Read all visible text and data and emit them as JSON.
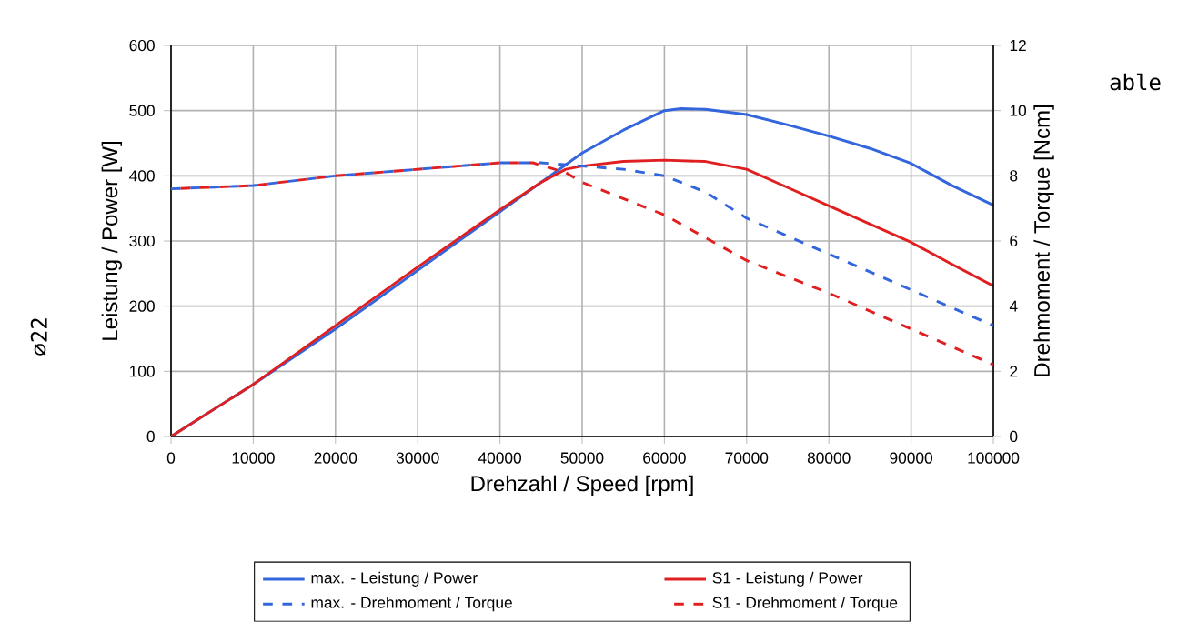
{
  "chart_data": {
    "type": "line",
    "xlabel": "Drehzahl / Speed [rpm]",
    "ylabel": "Leistung / Power [W]",
    "y2label": "Drehmoment / Torque [Ncm]",
    "xlim": [
      0,
      100000
    ],
    "xticks": [
      0,
      10000,
      20000,
      30000,
      40000,
      50000,
      60000,
      70000,
      80000,
      90000,
      100000
    ],
    "ylim": [
      0,
      600
    ],
    "yticks": [
      0,
      100,
      200,
      300,
      400,
      500,
      600
    ],
    "y2lim": [
      0,
      12
    ],
    "y2ticks": [
      0,
      2,
      4,
      6,
      8,
      10,
      12
    ],
    "grid": true,
    "legend": "bottom",
    "marker": "none",
    "annotations": [
      "able",
      "∅22"
    ],
    "series": [
      {
        "name": "max. - Leistung / Power",
        "color": "#3366dd",
        "line_style": "solid",
        "x": [
          0,
          10000,
          20000,
          30000,
          40000,
          45000,
          50000,
          55000,
          60000,
          62000,
          65000,
          70000,
          75000,
          80000,
          85000,
          90000,
          95000,
          100000
        ],
        "values": [
          0,
          80,
          165,
          255,
          345,
          390,
          435,
          470,
          500,
          503,
          502,
          494,
          478,
          461,
          442,
          419,
          385,
          355
        ]
      },
      {
        "name": "S1 - Leistung / Power",
        "color": "#e02020",
        "line_style": "solid",
        "x": [
          0,
          10000,
          20000,
          30000,
          40000,
          45000,
          48000,
          50000,
          55000,
          60000,
          65000,
          70000,
          75000,
          80000,
          85000,
          90000,
          95000,
          100000
        ],
        "values": [
          0,
          80,
          170,
          260,
          348,
          390,
          410,
          415,
          422,
          424,
          422,
          410,
          382,
          354,
          326,
          298,
          264,
          231
        ]
      },
      {
        "name": "max. - Drehmoment / Torque",
        "color": "#3366dd",
        "line_style": "dashed",
        "axis": "y2",
        "x": [
          0,
          10000,
          20000,
          30000,
          40000,
          45000,
          50000,
          55000,
          60000,
          65000,
          70000,
          80000,
          90000,
          100000
        ],
        "values": [
          7.6,
          7.7,
          8.0,
          8.2,
          8.4,
          8.4,
          8.3,
          8.2,
          8.0,
          7.5,
          6.7,
          5.6,
          4.5,
          3.4
        ]
      },
      {
        "name": "S1 - Drehmoment / Torque",
        "color": "#e02020",
        "line_style": "dashed",
        "axis": "y2",
        "x": [
          0,
          10000,
          20000,
          30000,
          40000,
          44000,
          48000,
          50000,
          60000,
          70000,
          80000,
          90000,
          100000
        ],
        "values": [
          7.6,
          7.7,
          8.0,
          8.2,
          8.4,
          8.4,
          8.1,
          7.8,
          6.8,
          5.4,
          4.4,
          3.3,
          2.2
        ]
      }
    ]
  }
}
